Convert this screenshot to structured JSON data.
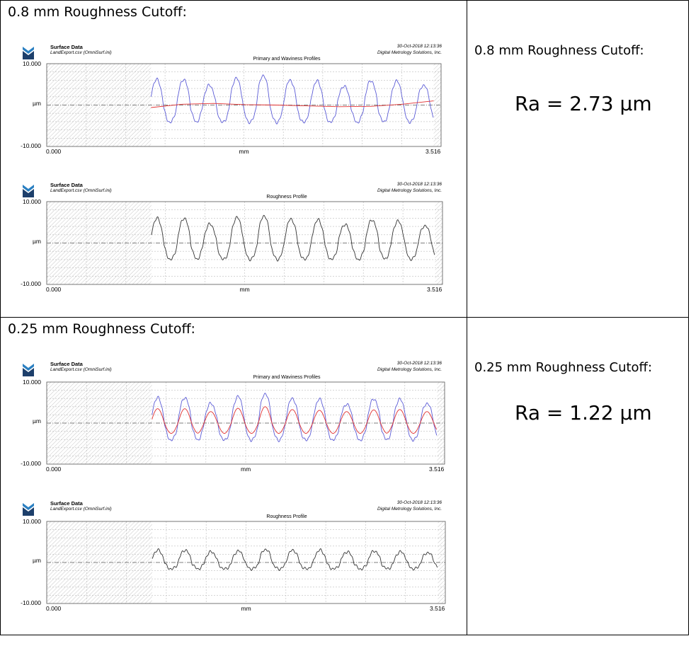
{
  "rows": [
    {
      "heading": "0.8 mm Roughness Cutoff:",
      "side_heading": "0.8 mm Roughness Cutoff:",
      "ra": "Ra = 2.73 µm",
      "panels": [
        {
          "title": "Surface Data",
          "file": "LandExport.csv  (OmniSurf.ini)",
          "date": "30-Oct-2018  12:13:36",
          "company": "Digital Metrology Solutions, Inc.",
          "chart_title": "Primary and Waviness Profiles",
          "y_top": "10.000",
          "y_mid": "µm",
          "y_bottom": "-10.000",
          "x_left": "0.000",
          "x_mid": "mm",
          "x_right": "3.516"
        },
        {
          "title": "Surface Data",
          "file": "LandExport.csv  (OmniSurf.ini)",
          "date": "30-Oct-2018  12:13:36",
          "company": "Digital Metrology Solutions, Inc.",
          "chart_title": "Roughness Profile",
          "y_top": "10.000",
          "y_mid": "µm",
          "y_bottom": "-10.000",
          "x_left": "0.000",
          "x_mid": "mm",
          "x_right": "3.516"
        }
      ]
    },
    {
      "heading": "0.25 mm Roughness Cutoff:",
      "side_heading": "0.25 mm Roughness Cutoff:",
      "ra": "Ra = 1.22 µm",
      "panels": [
        {
          "title": "Surface Data",
          "file": "LandExport.csv  (OmniSurf.ini)",
          "date": "30-Oct-2018  12:13:36",
          "company": "Digital Metrology Solutions, Inc.",
          "chart_title": "Primary and Waviness Profiles",
          "y_top": "10.000",
          "y_mid": "µm",
          "y_bottom": "-10.000",
          "x_left": "0.000",
          "x_mid": "mm",
          "x_right": "3.516"
        },
        {
          "title": "Surface Data",
          "file": "LandExport.csv  (OmniSurf.ini)",
          "date": "30-Oct-2018  12:13:36",
          "company": "Digital Metrology Solutions, Inc.",
          "chart_title": "Roughness Profile",
          "y_top": "10.000",
          "y_mid": "µm",
          "y_bottom": "-10.000",
          "x_left": "0.000",
          "x_mid": "mm",
          "x_right": "3.516"
        }
      ]
    }
  ],
  "colors": {
    "primary": "#5b5bd6",
    "waviness": "#e03030",
    "roughness": "#333333",
    "hatch": "#c8c8c8"
  },
  "chart_data": [
    {
      "type": "line",
      "title": "Primary and Waviness Profiles",
      "xlabel": "mm",
      "ylabel": "µm",
      "xlim": [
        0,
        3.516
      ],
      "ylim": [
        -10,
        10
      ],
      "evaluation_range": [
        0.93,
        3.45
      ],
      "peaks_x": [
        1.22,
        1.45,
        1.69,
        1.93,
        2.17,
        2.41,
        2.65,
        2.89,
        3.12,
        3.36
      ],
      "series": [
        {
          "role": "primary",
          "peak_values": [
            6.2,
            4.8,
            6.5,
            7.2,
            6.0,
            5.8,
            4.6,
            5.9,
            5.8,
            4.8
          ],
          "valley": -4.2
        },
        {
          "role": "waviness",
          "description_values": [
            -0.6,
            0.2,
            0.4,
            0.1,
            0.0,
            -0.2,
            -0.4,
            -0.3,
            0.2,
            1.0
          ]
        }
      ]
    },
    {
      "type": "line",
      "title": "Roughness Profile",
      "xlabel": "mm",
      "ylabel": "µm",
      "xlim": [
        0,
        3.516
      ],
      "ylim": [
        -10,
        10
      ],
      "peaks_x": [
        1.22,
        1.45,
        1.69,
        1.93,
        2.17,
        2.41,
        2.65,
        2.89,
        3.12,
        3.36
      ],
      "series": [
        {
          "role": "roughness",
          "peak_values": [
            6.0,
            4.6,
            6.2,
            6.6,
            5.8,
            5.6,
            4.5,
            5.6,
            5.3,
            4.2
          ],
          "valley": -4.0
        }
      ]
    },
    {
      "type": "line",
      "title": "Primary and Waviness Profiles",
      "xlabel": "mm",
      "ylabel": "µm",
      "xlim": [
        0,
        3.516
      ],
      "ylim": [
        -10,
        10
      ],
      "peaks_x": [
        1.22,
        1.45,
        1.69,
        1.93,
        2.17,
        2.41,
        2.65,
        2.89,
        3.12,
        3.36
      ],
      "series": [
        {
          "role": "primary",
          "peak_values": [
            6.2,
            4.8,
            6.5,
            7.2,
            6.0,
            5.8,
            4.6,
            5.9,
            5.8,
            4.8
          ],
          "valley": -4.2
        },
        {
          "role": "waviness",
          "peak_values": [
            3.5,
            2.8,
            3.6,
            4.0,
            3.3,
            3.1,
            2.8,
            3.2,
            3.3,
            2.8
          ],
          "valley": -2.5
        }
      ]
    },
    {
      "type": "line",
      "title": "Roughness Profile",
      "xlabel": "mm",
      "ylabel": "µm",
      "xlim": [
        0,
        3.516
      ],
      "ylim": [
        -10,
        10
      ],
      "peaks_x": [
        1.22,
        1.45,
        1.69,
        1.93,
        2.17,
        2.41,
        2.65,
        2.89,
        3.12,
        3.36
      ],
      "series": [
        {
          "role": "roughness",
          "peak_values": [
            3.0,
            2.6,
            2.8,
            3.2,
            3.0,
            3.0,
            2.6,
            2.8,
            2.6,
            2.4
          ],
          "valley": -1.6
        }
      ]
    }
  ]
}
